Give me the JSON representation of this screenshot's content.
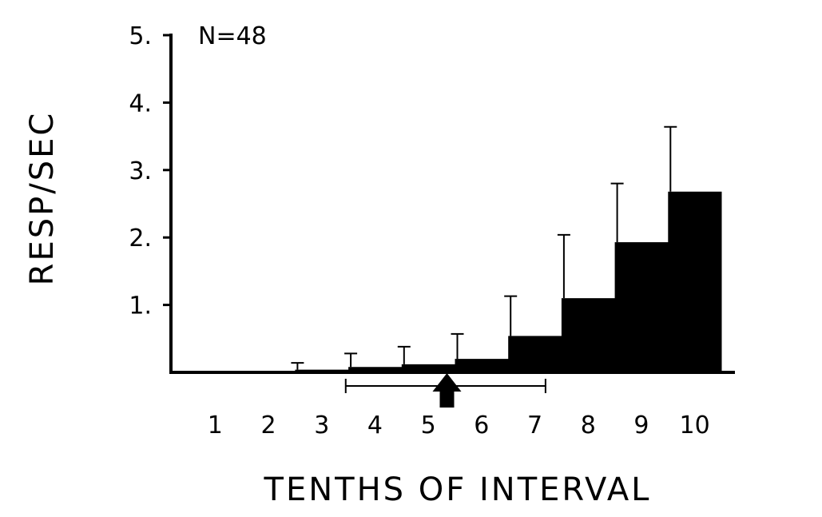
{
  "chart_data": {
    "type": "bar",
    "annotation": "N=48",
    "xlabel": "TENTHS OF INTERVAL",
    "ylabel": "RESP/SEC",
    "categories": [
      "1",
      "2",
      "3",
      "4",
      "5",
      "6",
      "7",
      "8",
      "9",
      "10"
    ],
    "values": [
      0.0,
      0.01,
      0.04,
      0.08,
      0.12,
      0.2,
      0.54,
      1.1,
      1.93,
      2.68
    ],
    "error_upper": [
      0.0,
      0.0,
      0.14,
      0.28,
      0.38,
      0.57,
      1.13,
      2.04,
      2.8,
      3.64
    ],
    "y_ticks": [
      "5.",
      "4.",
      "3.",
      "2.",
      "1."
    ],
    "ylim": [
      0,
      5
    ],
    "grid": false,
    "marker": {
      "position": 5.35,
      "range": [
        3.45,
        7.2
      ]
    },
    "colors": {
      "bars": "#000000",
      "background": "#ffffff"
    }
  }
}
